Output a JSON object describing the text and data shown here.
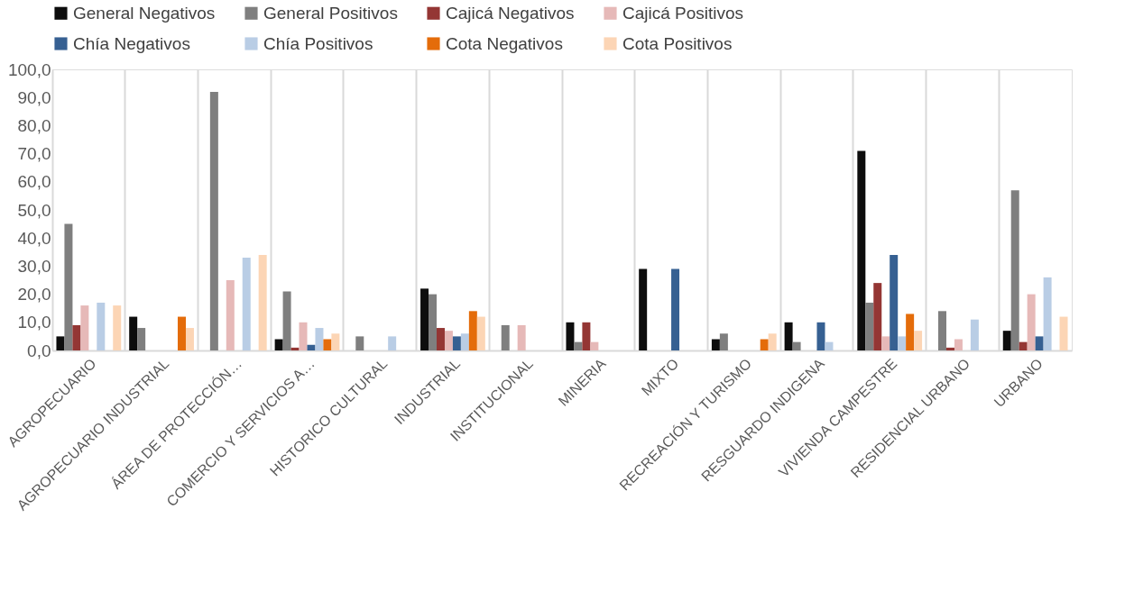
{
  "chart_data": {
    "type": "bar",
    "categories": [
      "AGROPECUARIO",
      "AGROPECUARIO INDUSTRIAL",
      "ÁREA DE PROTECCIÓN…",
      "COMERCIO Y SERVICIOS A…",
      "HISTORICO CULTURAL",
      "INDUSTRIAL",
      "INSTITUCIONAL",
      "MINERIA",
      "MIXTO",
      "RECREACIÓN Y TURISMO",
      "RESGUARDO INDIGENA",
      "VIVIENDA CAMPESTRE",
      "RESIDENCIAL URBANO",
      "URBANO"
    ],
    "series": [
      {
        "name": "General Negativos",
        "color": "#0d0d0d",
        "values": [
          5,
          12,
          0,
          4,
          0,
          22,
          0,
          10,
          29,
          4,
          10,
          71,
          0,
          7
        ]
      },
      {
        "name": "General Positivos",
        "color": "#7f7f7f",
        "values": [
          45,
          8,
          92,
          21,
          5,
          20,
          9,
          3,
          0,
          6,
          3,
          17,
          14,
          57
        ]
      },
      {
        "name": "Cajicá Negativos",
        "color": "#943634",
        "values": [
          9,
          0,
          0,
          1,
          0,
          8,
          0,
          10,
          0,
          0,
          0,
          24,
          1,
          3
        ]
      },
      {
        "name": "Cajicá Positivos",
        "color": "#e6b9b8",
        "values": [
          16,
          0,
          25,
          10,
          0,
          7,
          9,
          3,
          0,
          0,
          0,
          5,
          4,
          20
        ]
      },
      {
        "name": "Chía Negativos",
        "color": "#366092",
        "values": [
          0,
          0,
          0,
          2,
          0,
          5,
          0,
          0,
          29,
          0,
          10,
          34,
          0,
          5
        ]
      },
      {
        "name": "Chía Positivos",
        "color": "#b9cde5",
        "values": [
          17,
          0,
          33,
          8,
          5,
          6,
          0,
          0,
          0,
          0,
          3,
          5,
          11,
          26
        ]
      },
      {
        "name": "Cota Negativos",
        "color": "#e46c0a",
        "values": [
          0,
          12,
          0,
          4,
          0,
          14,
          0,
          0,
          0,
          4,
          0,
          13,
          0,
          0
        ]
      },
      {
        "name": "Cota Positivos",
        "color": "#fcd5b5",
        "values": [
          16,
          8,
          34,
          6,
          0,
          12,
          0,
          0,
          0,
          6,
          0,
          7,
          0,
          12
        ]
      }
    ],
    "ylim": [
      0,
      100
    ],
    "yticks": [
      {
        "value": 0,
        "label": "0,0"
      },
      {
        "value": 10,
        "label": "10,0"
      },
      {
        "value": 20,
        "label": "20,0"
      },
      {
        "value": 30,
        "label": "30,0"
      },
      {
        "value": 40,
        "label": "40,0"
      },
      {
        "value": 50,
        "label": "50,0"
      },
      {
        "value": 60,
        "label": "60,0"
      },
      {
        "value": 70,
        "label": "70,0"
      },
      {
        "value": 80,
        "label": "80,0"
      },
      {
        "value": 90,
        "label": "90,0"
      },
      {
        "value": 100,
        "label": "100,0"
      }
    ],
    "grid": "x",
    "legend": "top"
  }
}
